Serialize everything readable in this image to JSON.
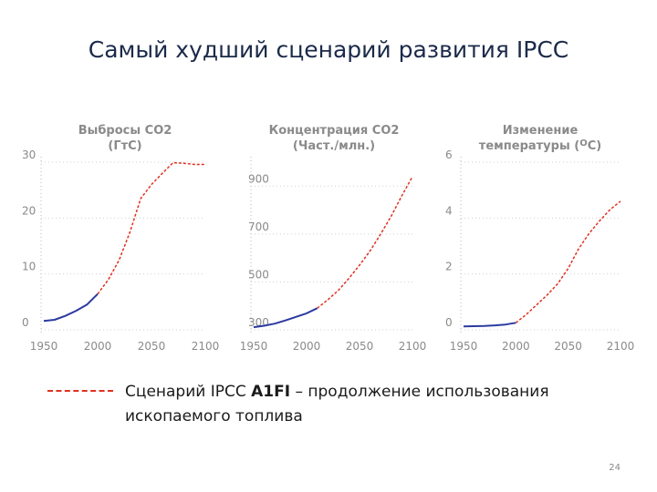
{
  "slide": {
    "title": "Самый худший сценарий развития IPCC",
    "page_number": "24"
  },
  "legend": {
    "text_before": "Сценарий IPCC ",
    "text_bold": "A1FI",
    "text_after": " – продолжение использования ископаемого топлива",
    "line_color": "#e03020"
  },
  "colors": {
    "historical": "#2c3aa0",
    "scenario": "#e03020",
    "axis_text": "#8a8a8a"
  },
  "chart_data": [
    {
      "type": "line",
      "title": [
        "Выбросы CO2",
        "(ГтС)"
      ],
      "xlim": [
        1950,
        2100
      ],
      "ylim": [
        0,
        30
      ],
      "x_ticks": [
        "1950",
        "2000",
        "2050",
        "2100"
      ],
      "y_ticks": [
        "0",
        "10",
        "20",
        "30"
      ],
      "series": [
        {
          "style": "solid",
          "x": [
            1950,
            1960,
            1970,
            1980,
            1990,
            2000
          ],
          "y": [
            1.6,
            1.8,
            2.5,
            3.4,
            4.5,
            6.4
          ]
        },
        {
          "style": "dashed",
          "x": [
            2000,
            2010,
            2020,
            2030,
            2040,
            2050,
            2060,
            2070,
            2080,
            2090,
            2100
          ],
          "y": [
            6.4,
            9.0,
            12.5,
            17.5,
            23.5,
            26.0,
            28.0,
            29.9,
            29.8,
            29.6,
            29.6
          ]
        }
      ]
    },
    {
      "type": "line",
      "title": [
        "Концентрация CO2",
        "(Част./млн.)"
      ],
      "xlim": [
        1950,
        2100
      ],
      "ylim": [
        300,
        1000
      ],
      "x_ticks": [
        "1950",
        "2000",
        "2050",
        "2100"
      ],
      "y_ticks": [
        "300",
        "500",
        "700",
        "900"
      ],
      "series": [
        {
          "style": "solid",
          "x": [
            1950,
            1960,
            1970,
            1980,
            1990,
            2000,
            2010
          ],
          "y": [
            311,
            317,
            326,
            339,
            354,
            369,
            390
          ]
        },
        {
          "style": "dashed",
          "x": [
            2010,
            2020,
            2030,
            2040,
            2050,
            2060,
            2070,
            2080,
            2090,
            2100
          ],
          "y": [
            390,
            425,
            465,
            515,
            570,
            630,
            700,
            775,
            860,
            940
          ]
        }
      ]
    },
    {
      "type": "line",
      "title": [
        "Изменение",
        "температуры (",
        "O",
        "C)"
      ],
      "xlim": [
        1950,
        2100
      ],
      "ylim": [
        0,
        6
      ],
      "x_ticks": [
        "1950",
        "2000",
        "2050",
        "2100"
      ],
      "y_ticks": [
        "0",
        "2",
        "4",
        "6"
      ],
      "series": [
        {
          "style": "solid",
          "x": [
            1950,
            1960,
            1970,
            1980,
            1990,
            2000
          ],
          "y": [
            0.12,
            0.13,
            0.14,
            0.16,
            0.19,
            0.25
          ]
        },
        {
          "style": "dashed",
          "x": [
            2000,
            2010,
            2020,
            2030,
            2040,
            2050,
            2060,
            2070,
            2080,
            2090,
            2100
          ],
          "y": [
            0.25,
            0.55,
            0.9,
            1.25,
            1.65,
            2.2,
            2.9,
            3.45,
            3.9,
            4.3,
            4.6
          ]
        }
      ]
    }
  ]
}
